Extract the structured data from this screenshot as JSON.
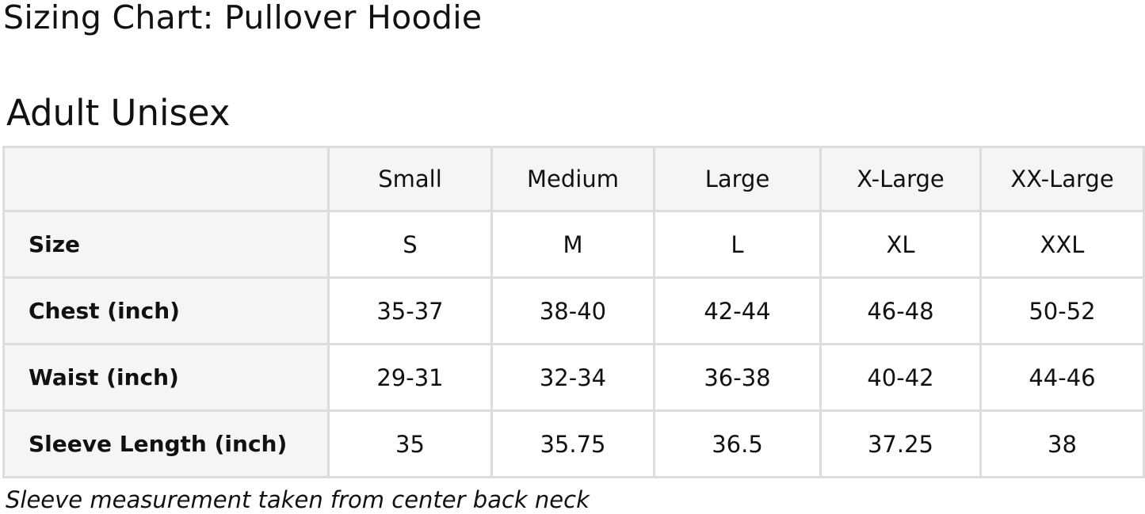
{
  "title": "Sizing Chart: Pullover Hoodie",
  "section": "Adult Unisex",
  "table": {
    "columns": [
      "",
      "Small",
      "Medium",
      "Large",
      "X-Large",
      "XX-Large"
    ],
    "rows": [
      {
        "label": "Size",
        "values": [
          "S",
          "M",
          "L",
          "XL",
          "XXL"
        ]
      },
      {
        "label": "Chest (inch)",
        "values": [
          "35-37",
          "38-40",
          "42-44",
          "46-48",
          "50-52"
        ]
      },
      {
        "label": "Waist (inch)",
        "values": [
          "29-31",
          "32-34",
          "36-38",
          "40-42",
          "44-46"
        ]
      },
      {
        "label": "Sleeve Length (inch)",
        "values": [
          "35",
          "35.75",
          "36.5",
          "37.25",
          "38"
        ]
      }
    ]
  },
  "note": "Sleeve measurement taken from center back neck"
}
